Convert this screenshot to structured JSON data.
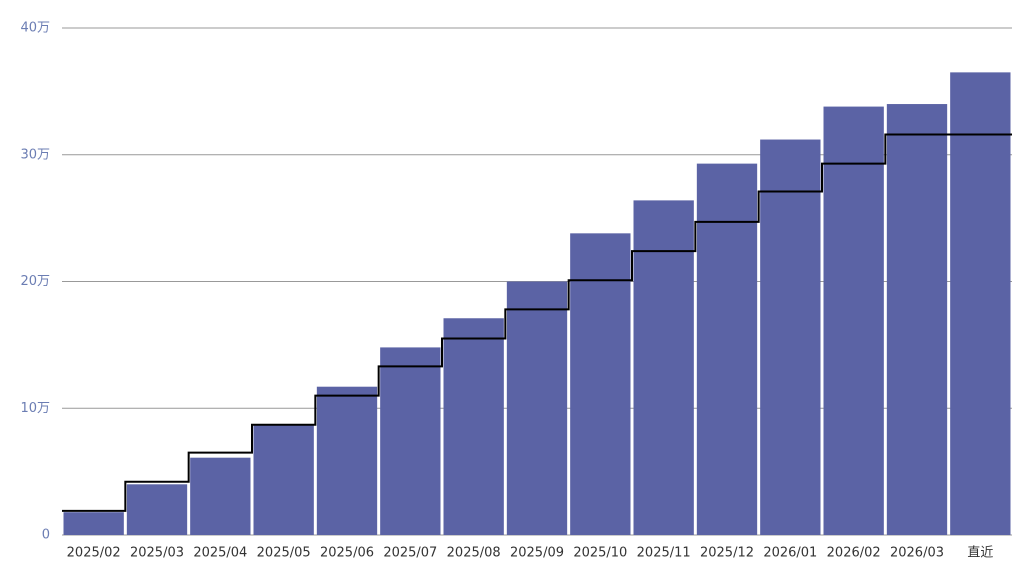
{
  "chart_data": {
    "type": "bar",
    "categories": [
      "2025/02",
      "2025/03",
      "2025/04",
      "2025/05",
      "2025/06",
      "2025/07",
      "2025/08",
      "2025/09",
      "2025/10",
      "2025/11",
      "2025/12",
      "2026/01",
      "2026/02",
      "2026/03",
      "直近"
    ],
    "series": [
      {
        "type": "bar",
        "color": "#5b63a5",
        "values": [
          18000,
          40000,
          61000,
          87000,
          117000,
          148000,
          171000,
          200000,
          238000,
          264000,
          293000,
          312000,
          338000,
          340000,
          365000
        ]
      },
      {
        "type": "step",
        "color": "#000000",
        "values": [
          19000,
          42000,
          65000,
          87000,
          110000,
          133000,
          155000,
          178000,
          201000,
          224000,
          247000,
          271000,
          293000,
          316000,
          316000
        ]
      }
    ],
    "ylim": [
      0,
      400000
    ],
    "yticks": [
      0,
      {
        "value": 100000,
        "label": "10万"
      },
      {
        "value": 200000,
        "label": "20万"
      },
      {
        "value": 300000,
        "label": "30万"
      },
      {
        "value": 400000,
        "label": "40万"
      }
    ],
    "grid": true
  }
}
